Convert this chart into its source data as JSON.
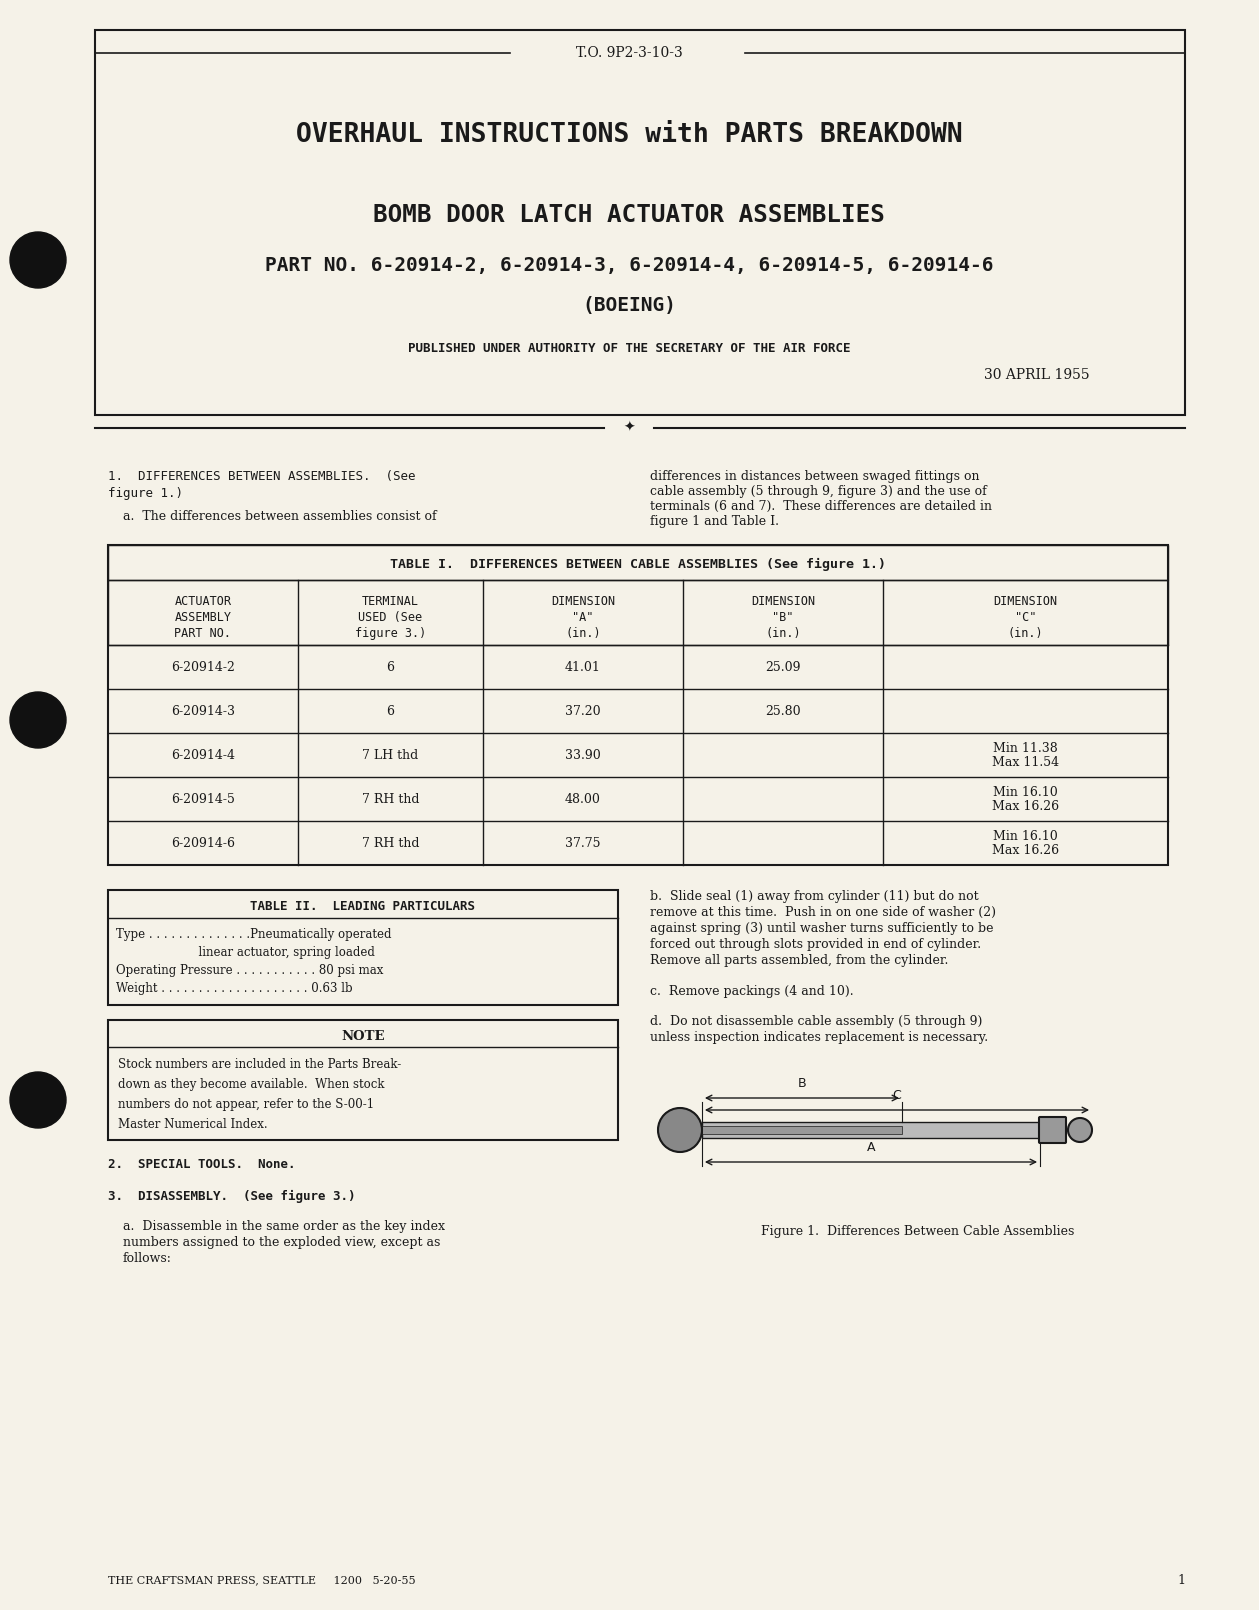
{
  "bg_color": "#f5f2e8",
  "page_bg": "#f5f2e8",
  "border_color": "#1a1a1a",
  "text_color": "#1a1a1a",
  "header_doc_num": "T.O. 9P2-3-10-3",
  "title1": "OVERHAUL INSTRUCTIONS with PARTS BREAKDOWN",
  "title2": "BOMB DOOR LATCH ACTUATOR ASSEMBLIES",
  "title3": "PART NO. 6-20914-2, 6-20914-3, 6-20914-4, 6-20914-5, 6-20914-6",
  "title4": "(BOEING)",
  "authority": "PUBLISHED UNDER AUTHORITY OF THE SECRETARY OF THE AIR FORCE",
  "date": "30 APRIL 1955",
  "section1_head": "1.  DIFFERENCES BETWEEN ASSEMBLIES.  (See\nfigure 1.)",
  "section1_para": "a.  The differences between assemblies consist of",
  "section1_right": "differences in distances between swaged fittings on\ncable assembly (5 through 9, figure 3) and the use of\nterminals (6 and 7).  These differences are detailed in\nfigure 1 and Table I.",
  "table1_title": "TABLE I.  DIFFERENCES BETWEEN CABLE ASSEMBLIES (See figure 1.)",
  "table1_col_headers": [
    "ACTUATOR\nASSEMBLY\nPART NO.",
    "TERMINAL\nUSED (See\nfigure 3.)",
    "DIMENSION\n\"A\"\n(in.)",
    "DIMENSION\n\"B\"\n(in.)",
    "DIMENSION\n\"C\"\n(in.)"
  ],
  "table1_rows": [
    [
      "6-20914-2",
      "6",
      "41.01",
      "25.09",
      ""
    ],
    [
      "6-20914-3",
      "6",
      "37.20",
      "25.80",
      ""
    ],
    [
      "6-20914-4",
      "7 LH thd",
      "33.90",
      "",
      "Min 11.38\nMax 11.54"
    ],
    [
      "6-20914-5",
      "7 RH thd",
      "48.00",
      "",
      "Min 16.10\nMax 16.26"
    ],
    [
      "6-20914-6",
      "7 RH thd",
      "37.75",
      "",
      "Min 16.10\nMax 16.26"
    ]
  ],
  "table2_title": "TABLE II.  LEADING PARTICULARS",
  "table2_rows": [
    "Type . . . . . . . . . . . . . . . Pneumatically operated\n                       linear actuator, spring loaded",
    "Operating Pressure . . . . . . . . . . . . . . 80 psi max",
    "Weight . . . . . . . . . . . . . . . . . . . . . . . . 0.63 lb"
  ],
  "note_title": "NOTE",
  "note_text": "Stock numbers are included in the Parts Break-\ndown as they become available.  When stock\nnumbers do not appear, refer to the S-00-1\nMaster Numerical Index.",
  "section2": "2.  SPECIAL TOOLS.  None.",
  "section3_head": "3.  DISASSEMBLY.  (See figure 3.)",
  "section3a": "a.  Disassemble in the same order as the key index\nnumbers assigned to the exploded view, except as\nfollows:",
  "section3b_right": "b.  Slide seal (1) away from cylinder (11) but do not\nremove at this time.  Push in on one side of washer (2)\nagainst spring (3) until washer turns sufficiently to be\nforced out through slots provided in end of cylinder.\nRemove all parts assembled, from the cylinder.",
  "section3c_right": "c.  Remove packings (4 and 10).",
  "section3d_right": "d.  Do not disassemble cable assembly (5 through 9)\nunless inspection indicates replacement is necessary.",
  "figure_caption": "Figure 1.  Differences Between Cable Assemblies",
  "footer": "THE CRAFTSMAN PRESS, SEATTLE     1200   5-20-55",
  "page_num": "1"
}
